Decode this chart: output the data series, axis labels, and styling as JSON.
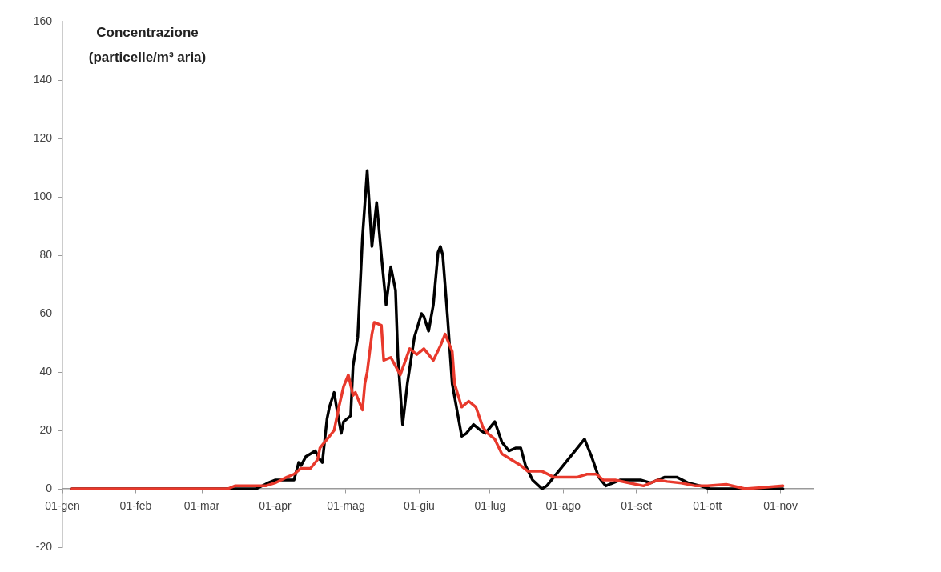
{
  "chart_data": {
    "type": "line",
    "ylabel": "Concentrazione\n(particelle/m³ aria)",
    "xlim": [
      "--01-01",
      "--11-15"
    ],
    "xticks": [
      {
        "value": "--01-01",
        "label": "01-gen"
      },
      {
        "value": "--02-01",
        "label": "01-feb"
      },
      {
        "value": "--03-01",
        "label": "01-mar"
      },
      {
        "value": "--04-01",
        "label": "01-apr"
      },
      {
        "value": "--05-01",
        "label": "01-mag"
      },
      {
        "value": "--06-01",
        "label": "01-giu"
      },
      {
        "value": "--07-01",
        "label": "01-lug"
      },
      {
        "value": "--08-01",
        "label": "01-ago"
      },
      {
        "value": "--09-01",
        "label": "01-set"
      },
      {
        "value": "--10-01",
        "label": "01-ott"
      },
      {
        "value": "--11-01",
        "label": "01-nov"
      }
    ],
    "ylim": [
      -20,
      160
    ],
    "yticks": [
      -20,
      0,
      20,
      40,
      60,
      80,
      100,
      120,
      140,
      160
    ],
    "marker": "none",
    "line_style": "solid",
    "series": [
      {
        "color": "#000000",
        "x": [
          "--01-05",
          "--03-15",
          "--03-24",
          "--03-29",
          "--04-01",
          "--04-06",
          "--04-09",
          "--04-11",
          "--04-12",
          "--04-14",
          "--04-16",
          "--04-18",
          "--04-20",
          "--04-21",
          "--04-23",
          "--04-24",
          "--04-26",
          "--04-27",
          "--04-29",
          "--04-30",
          "--05-03",
          "--05-04",
          "--05-06",
          "--05-08",
          "--05-10",
          "--05-12",
          "--05-14",
          "--05-16",
          "--05-18",
          "--05-20",
          "--05-22",
          "--05-23",
          "--05-25",
          "--05-27",
          "--05-30",
          "--06-02",
          "--06-03",
          "--06-05",
          "--06-07",
          "--06-09",
          "--06-10",
          "--06-11",
          "--06-13",
          "--06-15",
          "--06-17",
          "--06-19",
          "--06-21",
          "--06-24",
          "--06-27",
          "--06-29",
          "--07-03",
          "--07-06",
          "--07-09",
          "--07-12",
          "--07-14",
          "--07-16",
          "--07-19",
          "--07-23",
          "--07-25",
          "--08-10",
          "--08-13",
          "--08-16",
          "--08-19",
          "--08-25",
          "--08-29",
          "--09-03",
          "--09-07",
          "--09-13",
          "--09-18",
          "--09-23",
          "--09-28",
          "--10-02",
          "--10-17",
          "--11-02"
        ],
        "values": [
          0,
          0,
          0,
          2,
          3,
          3,
          3,
          9,
          8,
          11,
          12,
          13,
          10,
          9,
          24,
          28,
          33,
          28,
          19,
          23,
          25,
          42,
          52,
          86,
          109,
          83,
          98,
          80,
          63,
          76,
          68,
          45,
          22,
          36,
          52,
          60,
          59,
          54,
          63,
          81,
          83,
          80,
          59,
          36,
          27,
          18,
          19,
          22,
          20,
          19,
          23,
          16,
          13,
          14,
          14,
          8,
          3,
          0,
          1,
          17,
          11,
          4,
          1,
          3,
          3,
          3,
          2,
          4,
          4,
          2,
          1,
          0,
          0,
          0
        ]
      },
      {
        "color": "#e8392c",
        "x": [
          "--01-05",
          "--03-12",
          "--03-15",
          "--03-28",
          "--04-01",
          "--04-06",
          "--04-09",
          "--04-12",
          "--04-16",
          "--04-19",
          "--04-20",
          "--04-24",
          "--04-26",
          "--04-28",
          "--04-30",
          "--05-02",
          "--05-04",
          "--05-05",
          "--05-08",
          "--05-09",
          "--05-10",
          "--05-12",
          "--05-13",
          "--05-16",
          "--05-17",
          "--05-20",
          "--05-22",
          "--05-24",
          "--05-28",
          "--05-31",
          "--06-03",
          "--06-07",
          "--06-10",
          "--06-12",
          "--06-15",
          "--06-16",
          "--06-19",
          "--06-22",
          "--06-25",
          "--06-28",
          "--06-30",
          "--07-03",
          "--07-06",
          "--07-12",
          "--07-14",
          "--07-17",
          "--07-23",
          "--07-28",
          "--08-02",
          "--08-07",
          "--08-11",
          "--08-15",
          "--08-18",
          "--08-23",
          "--08-29",
          "--09-04",
          "--09-10",
          "--09-14",
          "--09-20",
          "--09-26",
          "--10-01",
          "--10-09",
          "--10-17",
          "--10-25",
          "--11-02"
        ],
        "values": [
          0,
          0,
          1,
          1,
          2,
          4,
          5,
          7,
          7,
          10,
          14,
          18,
          20,
          28,
          35,
          39,
          32,
          33,
          27,
          36,
          40,
          53,
          57,
          56,
          44,
          45,
          42,
          39,
          48,
          46,
          48,
          44,
          49,
          53,
          47,
          36,
          28,
          30,
          28,
          21,
          19,
          17,
          12,
          9,
          8,
          6,
          6,
          4,
          4,
          4,
          5,
          5,
          3,
          3,
          2,
          1,
          3,
          2.5,
          2,
          1,
          1,
          1.5,
          0,
          0.5,
          1
        ]
      }
    ]
  }
}
